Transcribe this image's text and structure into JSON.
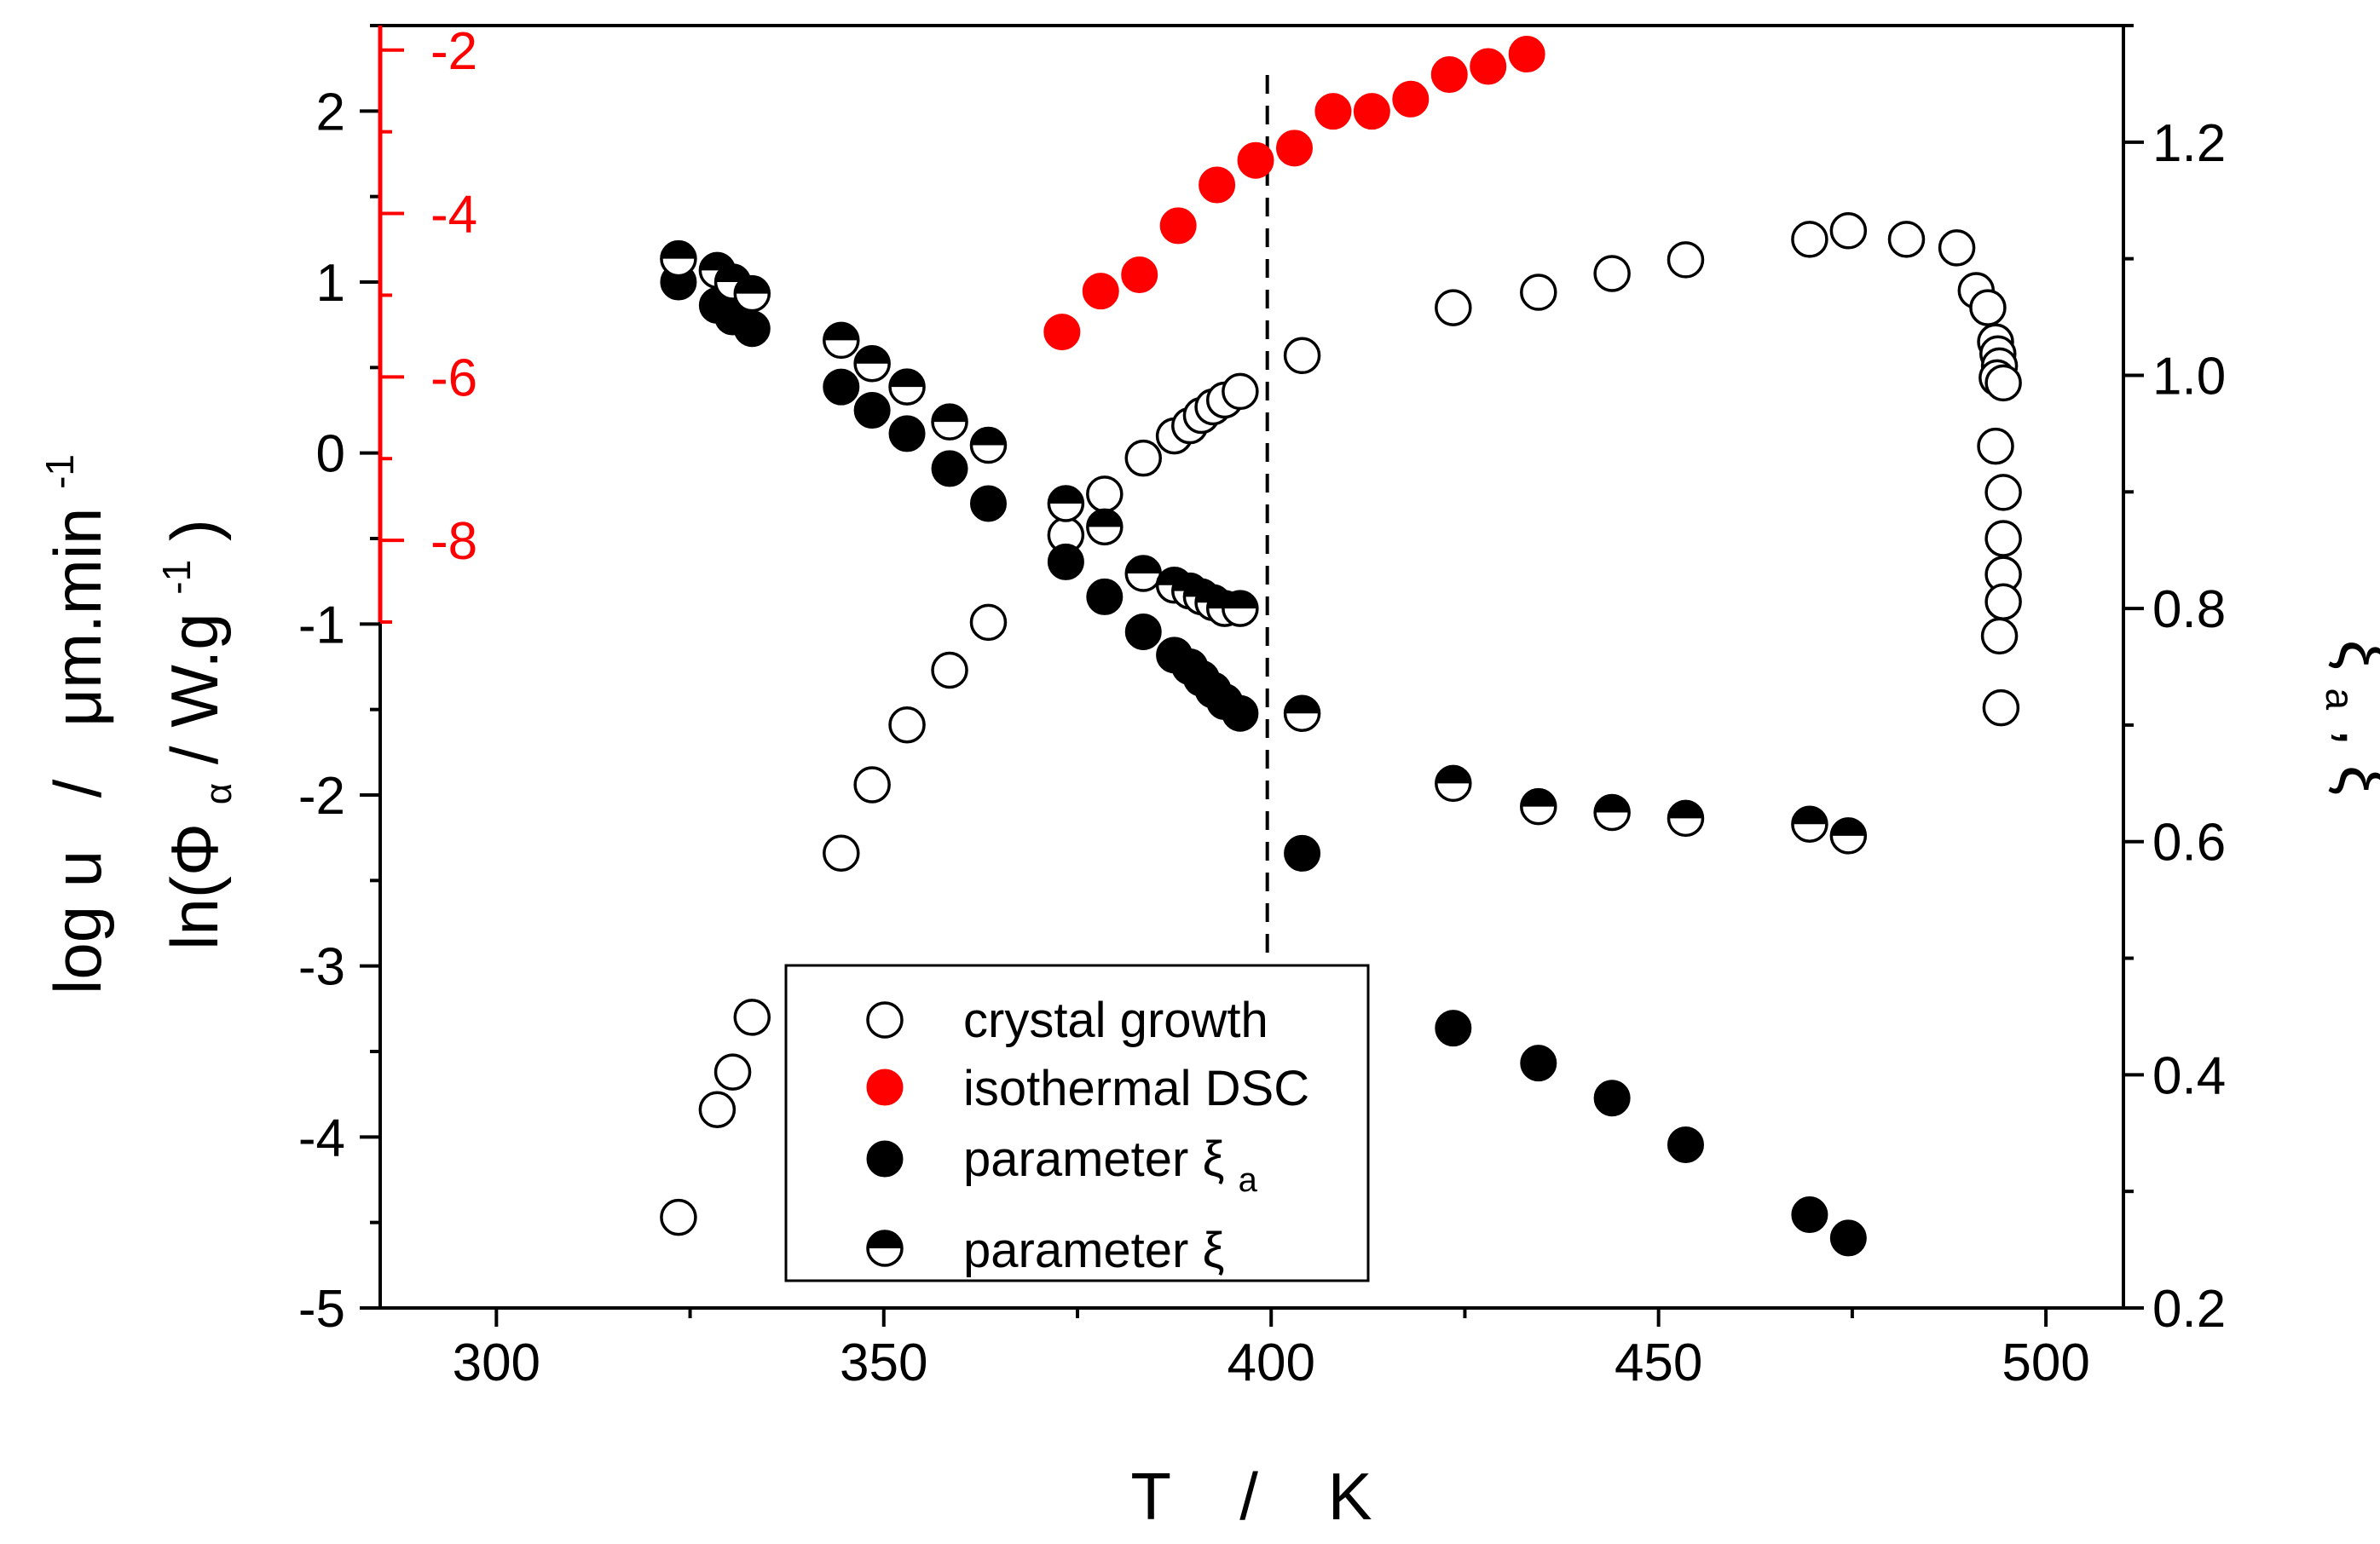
{
  "chart_data": {
    "type": "scatter",
    "x_axis": {
      "label_parts": [
        "T",
        "/",
        "K"
      ],
      "range": [
        285,
        510
      ],
      "ticks": [
        300,
        350,
        400,
        450,
        500
      ],
      "minor_ticks": [
        325,
        375,
        425,
        475
      ],
      "tick_labels": [
        "300",
        "350",
        "400",
        "450",
        "500"
      ]
    },
    "y_axis_left": {
      "label_main": "log u",
      "label_sep": "/",
      "label_unit": "μm.min",
      "label_unit_sup": "-1",
      "range": [
        -5,
        2.5
      ],
      "ticks": [
        -5,
        -4,
        -3,
        -2,
        -1,
        0,
        1,
        2
      ],
      "tick_labels": [
        "-5",
        "-4",
        "-3",
        "-2",
        "-1",
        "0",
        "1",
        "2"
      ]
    },
    "y_axis_red": {
      "label_prefix": "ln(Φ",
      "label_sub": "α",
      "label_mid": " / W.g",
      "label_sup": "-1",
      "label_close": ")",
      "range": [
        -9,
        -1.7
      ],
      "ticks": [
        -2,
        -4,
        -6,
        -8
      ],
      "tick_labels": [
        "-2",
        "-4",
        "-6",
        "-8"
      ],
      "color": "#ff0000"
    },
    "y_axis_right": {
      "label_xi": "ξ",
      "label_sub": "a",
      "label_sep": ", ",
      "label_xi2": "ξ",
      "range": [
        0.2,
        1.3
      ],
      "ticks": [
        0.2,
        0.4,
        0.6,
        0.8,
        1.0,
        1.2
      ],
      "tick_labels": [
        "0.2",
        "0.4",
        "0.6",
        "0.8",
        "1.0",
        "1.2"
      ]
    },
    "reference_line_x": 399.5,
    "series": [
      {
        "name": "crystal growth",
        "axis": "left",
        "marker": "open",
        "x": [
          323.5,
          328.5,
          330.5,
          333,
          344.5,
          348.5,
          353,
          358.5,
          363.5,
          373.5,
          378.5,
          383.5,
          387.5,
          389.5,
          391,
          392.5,
          394,
          396,
          404,
          423.5,
          434.5,
          444,
          453.5,
          469.5,
          474.5,
          482,
          488.5,
          491,
          492.5,
          493.5,
          493.8,
          494,
          493.7,
          493.5,
          494.5,
          494.5,
          494.5,
          494.5,
          494,
          494.2,
          494.5
        ],
        "y": [
          -4.47,
          -3.84,
          -3.62,
          -3.3,
          -2.34,
          -1.94,
          -1.59,
          -1.27,
          -0.99,
          -0.48,
          -0.24,
          -0.03,
          0.1,
          0.16,
          0.22,
          0.27,
          0.31,
          0.36,
          0.57,
          0.85,
          0.94,
          1.05,
          1.13,
          1.25,
          1.3,
          1.25,
          1.2,
          0.95,
          0.85,
          0.65,
          0.58,
          0.51,
          0.44,
          0.04,
          -0.23,
          -0.5,
          -0.71,
          -0.87,
          -1.07,
          -1.49,
          0.41
        ]
      },
      {
        "name": "isothermal DSC",
        "axis": "red",
        "marker": "filled-red",
        "x": [
          373,
          378,
          383,
          388,
          393,
          398,
          403,
          408,
          413,
          418,
          423,
          428,
          433
        ],
        "y": [
          -5.45,
          -4.95,
          -4.75,
          -4.15,
          -3.65,
          -3.35,
          -3.2,
          -2.75,
          -2.75,
          -2.6,
          -2.3,
          -2.2,
          -2.05
        ]
      },
      {
        "name": "parameter ξa",
        "legend_base": "parameter ξ",
        "legend_sub": "a",
        "axis": "right",
        "marker": "filled",
        "x": [
          323.5,
          328.5,
          330.5,
          333,
          344.5,
          348.5,
          353,
          358.5,
          363.5,
          373.5,
          378.5,
          383.5,
          387.5,
          389.5,
          391,
          392.5,
          394,
          396,
          404,
          423.5,
          434.5,
          444,
          453.5,
          469.5,
          474.5
        ],
        "y": [
          1.08,
          1.06,
          1.05,
          1.04,
          0.99,
          0.97,
          0.95,
          0.92,
          0.89,
          0.84,
          0.81,
          0.78,
          0.76,
          0.75,
          0.74,
          0.73,
          0.72,
          0.71,
          0.59,
          0.44,
          0.41,
          0.38,
          0.34,
          0.28,
          0.26
        ]
      },
      {
        "name": "parameter ξ",
        "axis": "right",
        "marker": "half",
        "x": [
          323.5,
          328.5,
          330.5,
          333,
          344.5,
          348.5,
          353,
          358.5,
          363.5,
          373.5,
          378.5,
          383.5,
          387.5,
          389.5,
          391,
          392.5,
          394,
          396,
          404,
          423.5,
          434.5,
          444,
          453.5,
          469.5,
          474.5
        ],
        "y": [
          1.1,
          1.09,
          1.08,
          1.07,
          1.03,
          1.01,
          0.99,
          0.96,
          0.94,
          0.89,
          0.87,
          0.83,
          0.82,
          0.815,
          0.81,
          0.805,
          0.8,
          0.8,
          0.71,
          0.65,
          0.63,
          0.625,
          0.62,
          0.615,
          0.605
        ]
      }
    ]
  }
}
